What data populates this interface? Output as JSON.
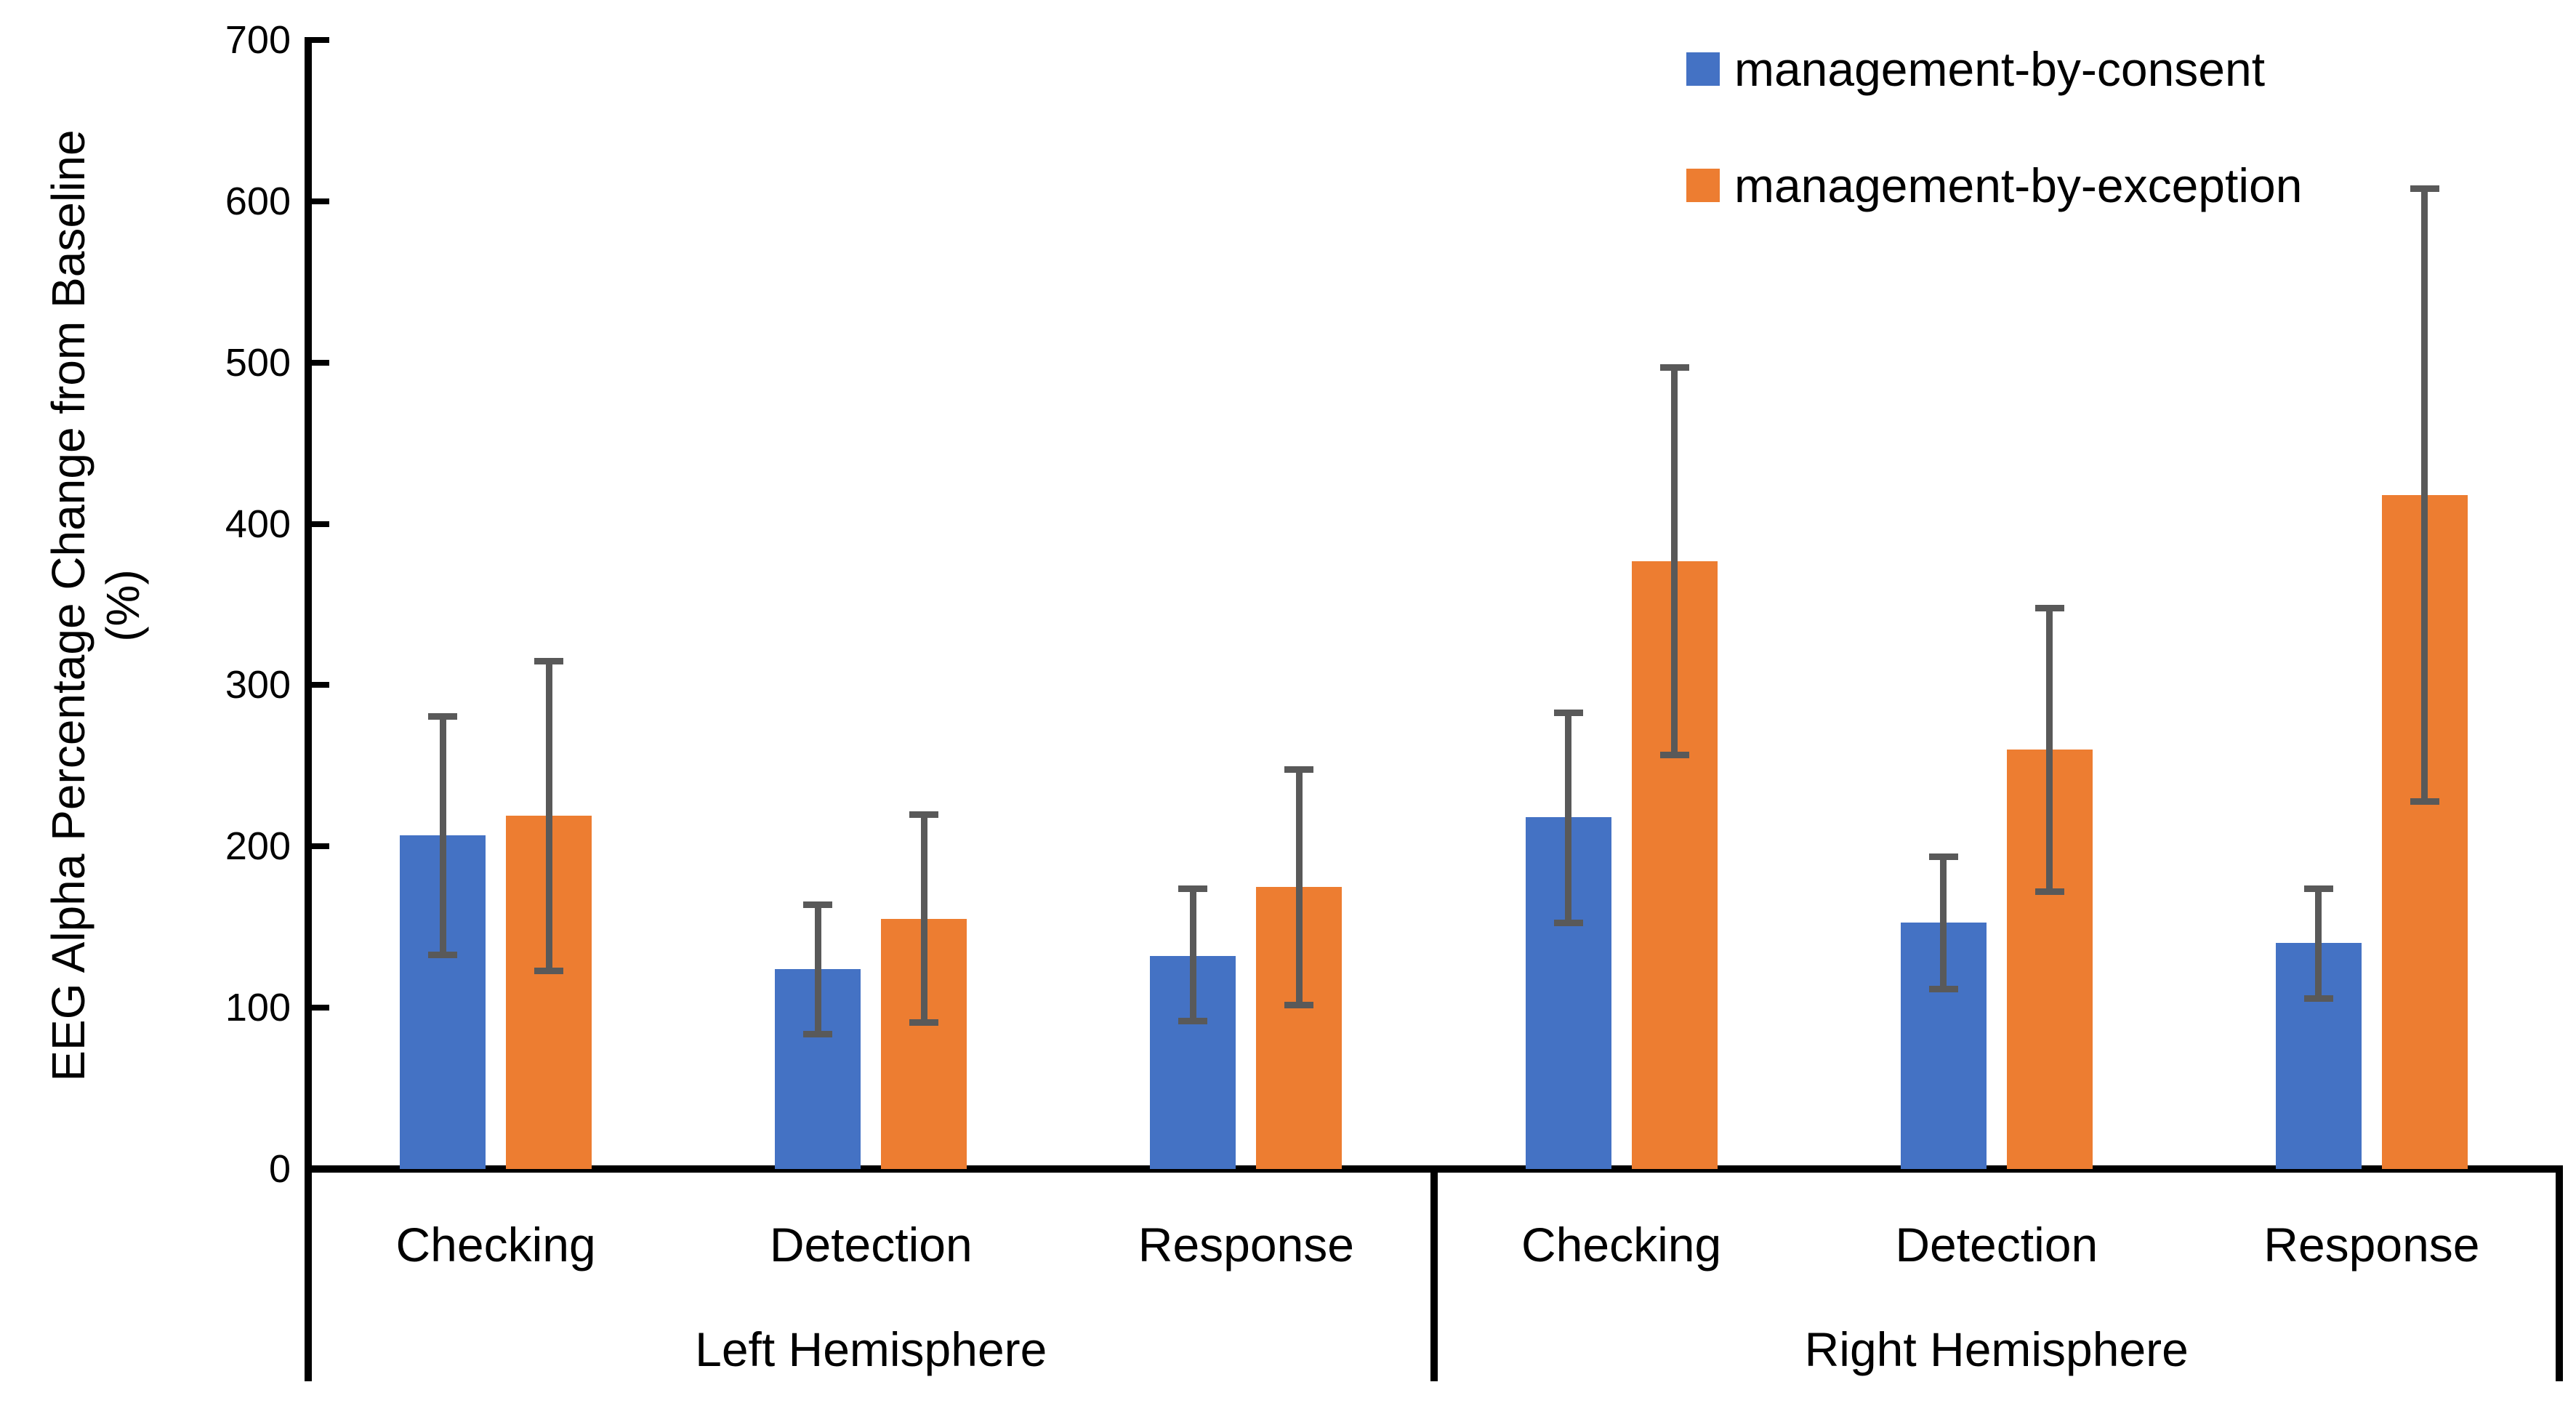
{
  "chart_data": {
    "type": "bar",
    "ylabel": "EEG Alpha Percentage Change from Baseline",
    "ylabel_unit": "(%)",
    "ylim": [
      0,
      700
    ],
    "y_ticks": [
      0,
      100,
      200,
      300,
      400,
      500,
      600,
      700
    ],
    "grid": false,
    "legend_position": "top-right",
    "hemispheres": [
      "Left Hemisphere",
      "Right Hemisphere"
    ],
    "tasks": [
      "Checking",
      "Detection",
      "Response"
    ],
    "category_order": [
      "Left Hemisphere / Checking",
      "Left Hemisphere / Detection",
      "Left Hemisphere / Response",
      "Right Hemisphere / Checking",
      "Right Hemisphere / Detection",
      "Right Hemisphere / Response"
    ],
    "series": [
      {
        "name": "management-by-consent",
        "color": "#4472C4",
        "values": [
          207,
          124,
          132,
          218,
          153,
          140
        ],
        "error_low": [
          133,
          84,
          92,
          153,
          112,
          106
        ],
        "error_high": [
          281,
          164,
          174,
          283,
          194,
          174
        ]
      },
      {
        "name": "management-by-exception",
        "color": "#ED7D31",
        "values": [
          219,
          155,
          175,
          377,
          260,
          418
        ],
        "error_low": [
          123,
          91,
          102,
          257,
          172,
          228
        ],
        "error_high": [
          315,
          220,
          248,
          497,
          348,
          608
        ]
      }
    ],
    "error_bar_color": "#595959",
    "axis_color": "#000000"
  }
}
